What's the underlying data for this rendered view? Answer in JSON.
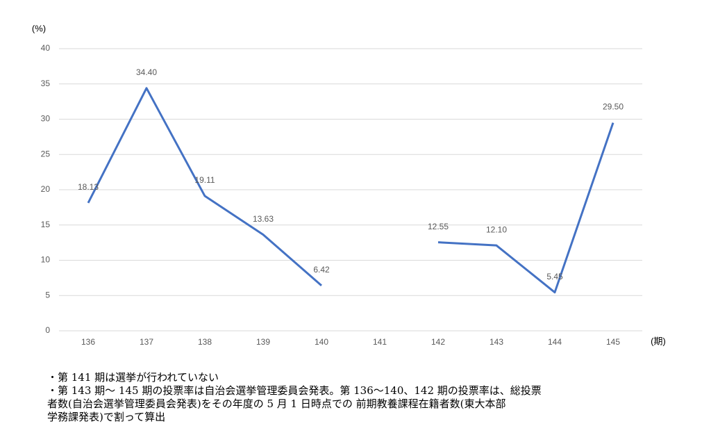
{
  "chart_data": {
    "type": "line",
    "y_label": "(%)",
    "x_label": "(期)",
    "categories": [
      "136",
      "137",
      "138",
      "139",
      "140",
      "141",
      "142",
      "143",
      "144",
      "145"
    ],
    "series": [
      {
        "name": "投票率",
        "color": "#4472c4",
        "values": [
          18.13,
          34.4,
          19.11,
          13.63,
          6.42,
          null,
          12.55,
          12.1,
          5.45,
          29.5
        ],
        "value_labels": [
          "18.13",
          "34.40",
          "19.11",
          "13.63",
          "6.42",
          null,
          "12.55",
          "12.10",
          "5.45",
          "29.50"
        ]
      }
    ],
    "ylim": [
      0,
      40
    ],
    "yticks": [
      0,
      5,
      10,
      15,
      20,
      25,
      30,
      35,
      40
    ],
    "grid": true,
    "legend": false
  },
  "notes": [
    "・第 141 期は選挙が行われていない",
    "・第 143 期〜 145 期の投票率は自治会選挙管理委員会発表。第 136〜140、142 期の投票率は、総投票",
    "者数(自治会選挙管理委員会発表)をその年度の 5 月 1 日時点での 前期教養課程在籍者数(東大本部",
    "学務課発表)で割って算出"
  ]
}
